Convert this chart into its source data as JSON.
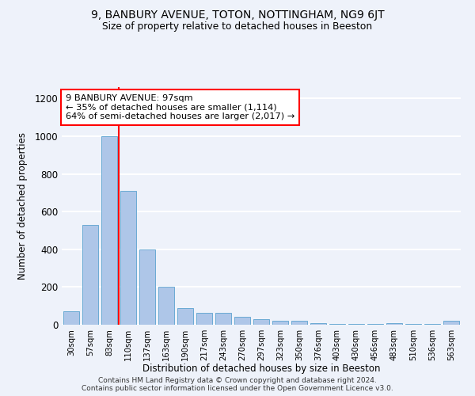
{
  "title1": "9, BANBURY AVENUE, TOTON, NOTTINGHAM, NG9 6JT",
  "title2": "Size of property relative to detached houses in Beeston",
  "xlabel": "Distribution of detached houses by size in Beeston",
  "ylabel": "Number of detached properties",
  "bar_color": "#aec6e8",
  "bar_edge_color": "#6aaad4",
  "categories": [
    "30sqm",
    "57sqm",
    "83sqm",
    "110sqm",
    "137sqm",
    "163sqm",
    "190sqm",
    "217sqm",
    "243sqm",
    "270sqm",
    "297sqm",
    "323sqm",
    "350sqm",
    "376sqm",
    "403sqm",
    "430sqm",
    "456sqm",
    "483sqm",
    "510sqm",
    "536sqm",
    "563sqm"
  ],
  "values": [
    70,
    530,
    1000,
    710,
    400,
    200,
    90,
    65,
    65,
    40,
    30,
    20,
    20,
    10,
    5,
    5,
    5,
    10,
    5,
    5,
    20
  ],
  "annotation_text": "9 BANBURY AVENUE: 97sqm\n← 35% of detached houses are smaller (1,114)\n64% of semi-detached houses are larger (2,017) →",
  "annotation_box_color": "white",
  "annotation_box_edge_color": "red",
  "vline_color": "red",
  "ylim": [
    0,
    1260
  ],
  "yticks": [
    0,
    200,
    400,
    600,
    800,
    1000,
    1200
  ],
  "footnote1": "Contains HM Land Registry data © Crown copyright and database right 2024.",
  "footnote2": "Contains public sector information licensed under the Open Government Licence v3.0.",
  "bg_color": "#eef2fa",
  "grid_color": "white"
}
